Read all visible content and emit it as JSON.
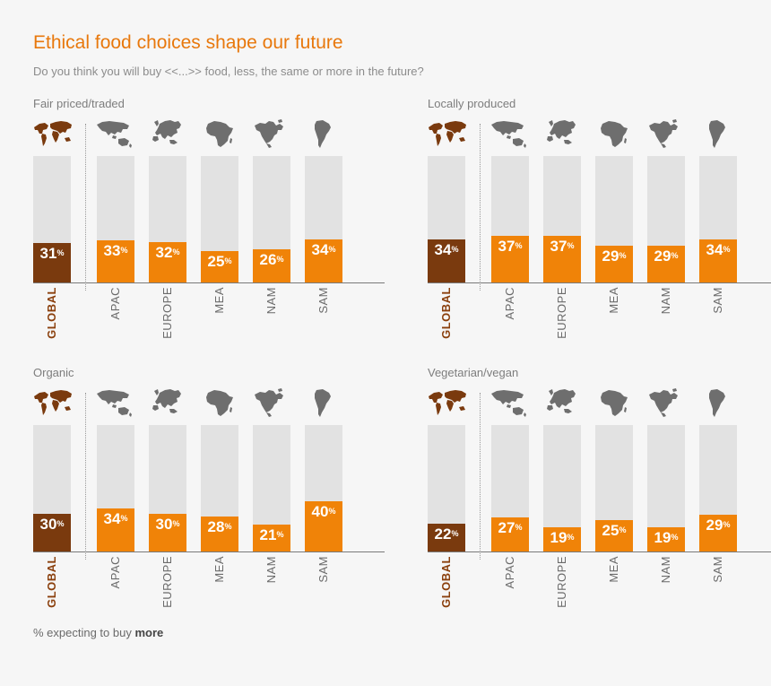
{
  "title": "Ethical food choices shape our future",
  "subtitle": "Do you think you will buy <<...>> food, less, the same or more in the future?",
  "footnote": {
    "prefix": "% expecting to buy ",
    "emphasis": "more"
  },
  "colors": {
    "global": "#7a3a0e",
    "region": "#f08308",
    "track": "#e2e2e2",
    "map_region": "#6e6e6e",
    "title": "#e8780c"
  },
  "regions": [
    {
      "key": "global",
      "label": "GLOBAL",
      "icon": "world-map-icon"
    },
    {
      "key": "apac",
      "label": "APAC",
      "icon": "asia-pacific-map-icon"
    },
    {
      "key": "europe",
      "label": "EUROPE",
      "icon": "europe-map-icon"
    },
    {
      "key": "mea",
      "label": "MEA",
      "icon": "africa-map-icon"
    },
    {
      "key": "nam",
      "label": "NAM",
      "icon": "north-america-map-icon"
    },
    {
      "key": "sam",
      "label": "SAM",
      "icon": "south-america-map-icon"
    }
  ],
  "chart_data": [
    {
      "type": "bar",
      "title": "Fair priced/traded",
      "categories": [
        "GLOBAL",
        "APAC",
        "EUROPE",
        "MEA",
        "NAM",
        "SAM"
      ],
      "values": [
        31,
        33,
        32,
        25,
        26,
        34
      ],
      "unit": "%",
      "ylim": [
        0,
        100
      ]
    },
    {
      "type": "bar",
      "title": "Locally produced",
      "categories": [
        "GLOBAL",
        "APAC",
        "EUROPE",
        "MEA",
        "NAM",
        "SAM"
      ],
      "values": [
        34,
        37,
        37,
        29,
        29,
        34
      ],
      "unit": "%",
      "ylim": [
        0,
        100
      ]
    },
    {
      "type": "bar",
      "title": "Organic",
      "categories": [
        "GLOBAL",
        "APAC",
        "EUROPE",
        "MEA",
        "NAM",
        "SAM"
      ],
      "values": [
        30,
        34,
        30,
        28,
        21,
        40
      ],
      "unit": "%",
      "ylim": [
        0,
        100
      ]
    },
    {
      "type": "bar",
      "title": "Vegetarian/vegan",
      "categories": [
        "GLOBAL",
        "APAC",
        "EUROPE",
        "MEA",
        "NAM",
        "SAM"
      ],
      "values": [
        22,
        27,
        19,
        25,
        19,
        29
      ],
      "unit": "%",
      "ylim": [
        0,
        100
      ]
    }
  ]
}
